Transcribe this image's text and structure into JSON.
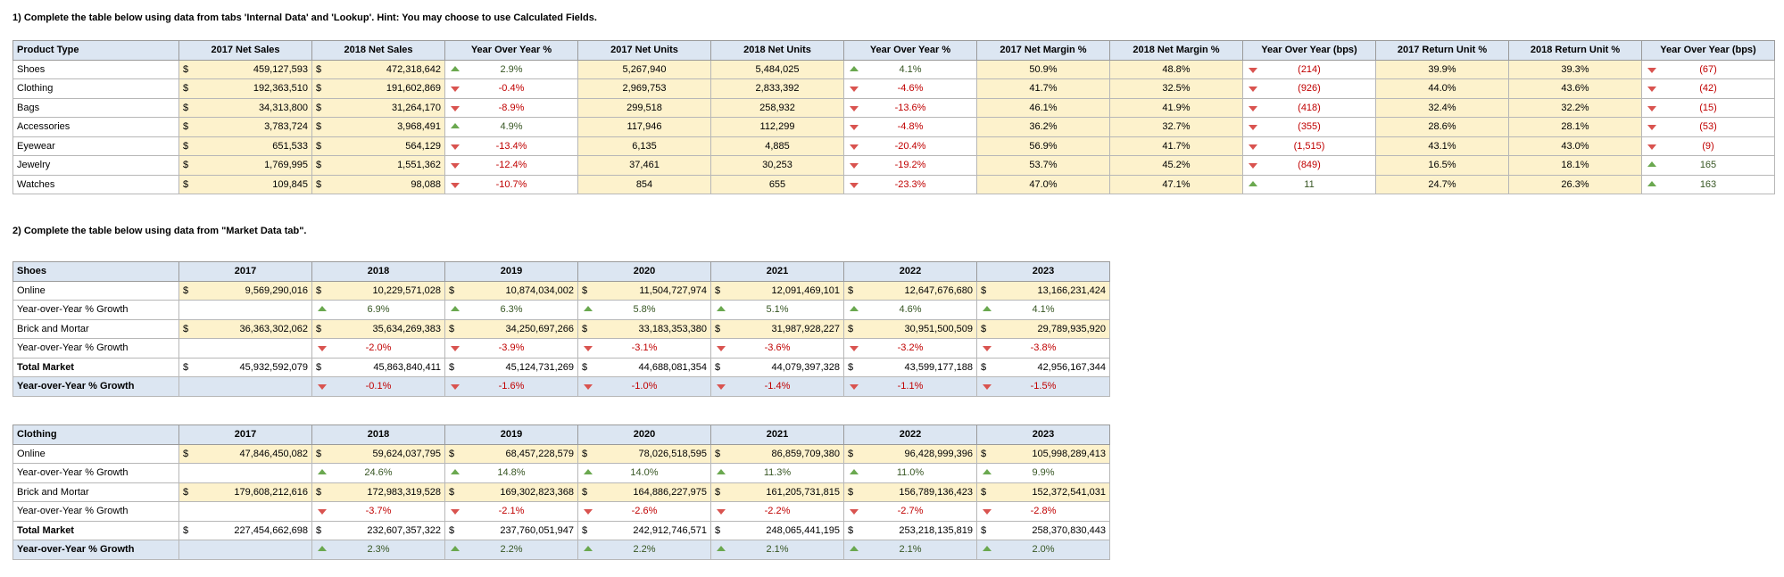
{
  "q1": {
    "heading": "1) Complete the table below using data from tabs 'Internal Data' and 'Lookup'. Hint: You may choose to use Calculated Fields.",
    "headers": [
      "Product Type",
      "2017 Net Sales",
      "2018 Net Sales",
      "Year Over Year %",
      "2017 Net Units",
      "2018 Net Units",
      "Year Over Year %",
      "2017 Net Margin %",
      "2018 Net Margin %",
      "Year Over Year (bps)",
      "2017 Return Unit %",
      "2018 Return Unit %",
      "Year Over Year (bps)"
    ],
    "rows": [
      {
        "type": "Shoes",
        "s17": "459,127,593",
        "s18": "472,318,642",
        "yoy": "2.9%",
        "yoy_dir": "up",
        "u17": "5,267,940",
        "u18": "5,484,025",
        "uyoy": "4.1%",
        "uyoy_dir": "up",
        "m17": "50.9%",
        "m18": "48.8%",
        "mbps": "(214)",
        "mbps_dir": "down",
        "r17": "39.9%",
        "r18": "39.3%",
        "rbps": "(67)",
        "rbps_dir": "down"
      },
      {
        "type": "Clothing",
        "s17": "192,363,510",
        "s18": "191,602,869",
        "yoy": "-0.4%",
        "yoy_dir": "down",
        "u17": "2,969,753",
        "u18": "2,833,392",
        "uyoy": "-4.6%",
        "uyoy_dir": "down",
        "m17": "41.7%",
        "m18": "32.5%",
        "mbps": "(926)",
        "mbps_dir": "down",
        "r17": "44.0%",
        "r18": "43.6%",
        "rbps": "(42)",
        "rbps_dir": "down"
      },
      {
        "type": "Bags",
        "s17": "34,313,800",
        "s18": "31,264,170",
        "yoy": "-8.9%",
        "yoy_dir": "down",
        "u17": "299,518",
        "u18": "258,932",
        "uyoy": "-13.6%",
        "uyoy_dir": "down",
        "m17": "46.1%",
        "m18": "41.9%",
        "mbps": "(418)",
        "mbps_dir": "down",
        "r17": "32.4%",
        "r18": "32.2%",
        "rbps": "(15)",
        "rbps_dir": "down"
      },
      {
        "type": "Accessories",
        "s17": "3,783,724",
        "s18": "3,968,491",
        "yoy": "4.9%",
        "yoy_dir": "up",
        "u17": "117,946",
        "u18": "112,299",
        "uyoy": "-4.8%",
        "uyoy_dir": "down",
        "m17": "36.2%",
        "m18": "32.7%",
        "mbps": "(355)",
        "mbps_dir": "down",
        "r17": "28.6%",
        "r18": "28.1%",
        "rbps": "(53)",
        "rbps_dir": "down"
      },
      {
        "type": "Eyewear",
        "s17": "651,533",
        "s18": "564,129",
        "yoy": "-13.4%",
        "yoy_dir": "down",
        "u17": "6,135",
        "u18": "4,885",
        "uyoy": "-20.4%",
        "uyoy_dir": "down",
        "m17": "56.9%",
        "m18": "41.7%",
        "mbps": "(1,515)",
        "mbps_dir": "down",
        "r17": "43.1%",
        "r18": "43.0%",
        "rbps": "(9)",
        "rbps_dir": "down"
      },
      {
        "type": "Jewelry",
        "s17": "1,769,995",
        "s18": "1,551,362",
        "yoy": "-12.4%",
        "yoy_dir": "down",
        "u17": "37,461",
        "u18": "30,253",
        "uyoy": "-19.2%",
        "uyoy_dir": "down",
        "m17": "53.7%",
        "m18": "45.2%",
        "mbps": "(849)",
        "mbps_dir": "down",
        "r17": "16.5%",
        "r18": "18.1%",
        "rbps": "165",
        "rbps_dir": "up"
      },
      {
        "type": "Watches",
        "s17": "109,845",
        "s18": "98,088",
        "yoy": "-10.7%",
        "yoy_dir": "down",
        "u17": "854",
        "u18": "655",
        "uyoy": "-23.3%",
        "uyoy_dir": "down",
        "m17": "47.0%",
        "m18": "47.1%",
        "mbps": "11",
        "mbps_dir": "up",
        "r17": "24.7%",
        "r18": "26.3%",
        "rbps": "163",
        "rbps_dir": "up"
      }
    ]
  },
  "q2": {
    "heading": "2) Complete the table below using data from \"Market Data tab\".",
    "years": [
      "2017",
      "2018",
      "2019",
      "2020",
      "2021",
      "2022",
      "2023"
    ],
    "tables": [
      {
        "category": "Shoes",
        "rows": [
          {
            "label": "Online",
            "kind": "money",
            "values": [
              "9,569,290,016",
              "10,229,571,028",
              "10,874,034,002",
              "11,504,727,974",
              "12,091,469,101",
              "12,647,676,680",
              "13,166,231,424"
            ]
          },
          {
            "label": "Year-over-Year % Growth",
            "kind": "growth",
            "values": [
              "",
              "6.9%",
              "6.3%",
              "5.8%",
              "5.1%",
              "4.6%",
              "4.1%"
            ],
            "dirs": [
              "",
              "up",
              "up",
              "up",
              "up",
              "up",
              "up"
            ]
          },
          {
            "label": "Brick and Mortar",
            "kind": "money",
            "values": [
              "36,363,302,062",
              "35,634,269,383",
              "34,250,697,266",
              "33,183,353,380",
              "31,987,928,227",
              "30,951,500,509",
              "29,789,935,920"
            ]
          },
          {
            "label": "Year-over-Year % Growth",
            "kind": "growth",
            "values": [
              "",
              "-2.0%",
              "-3.9%",
              "-3.1%",
              "-3.6%",
              "-3.2%",
              "-3.8%"
            ],
            "dirs": [
              "",
              "down",
              "down",
              "down",
              "down",
              "down",
              "down"
            ]
          },
          {
            "label": "Total Market",
            "kind": "total",
            "values": [
              "45,932,592,079",
              "45,863,840,411",
              "45,124,731,269",
              "44,688,081,354",
              "44,079,397,328",
              "43,599,177,188",
              "42,956,167,344"
            ]
          },
          {
            "label": "Year-over-Year % Growth",
            "kind": "totalgrowth",
            "values": [
              "",
              "-0.1%",
              "-1.6%",
              "-1.0%",
              "-1.4%",
              "-1.1%",
              "-1.5%"
            ],
            "dirs": [
              "",
              "down",
              "down",
              "down",
              "down",
              "down",
              "down"
            ]
          }
        ]
      },
      {
        "category": "Clothing",
        "rows": [
          {
            "label": "Online",
            "kind": "money",
            "values": [
              "47,846,450,082",
              "59,624,037,795",
              "68,457,228,579",
              "78,026,518,595",
              "86,859,709,380",
              "96,428,999,396",
              "105,998,289,413"
            ]
          },
          {
            "label": "Year-over-Year % Growth",
            "kind": "growth",
            "values": [
              "",
              "24.6%",
              "14.8%",
              "14.0%",
              "11.3%",
              "11.0%",
              "9.9%"
            ],
            "dirs": [
              "",
              "up",
              "up",
              "up",
              "up",
              "up",
              "up"
            ]
          },
          {
            "label": "Brick and Mortar",
            "kind": "money",
            "values": [
              "179,608,212,616",
              "172,983,319,528",
              "169,302,823,368",
              "164,886,227,975",
              "161,205,731,815",
              "156,789,136,423",
              "152,372,541,031"
            ]
          },
          {
            "label": "Year-over-Year % Growth",
            "kind": "growth",
            "values": [
              "",
              "-3.7%",
              "-2.1%",
              "-2.6%",
              "-2.2%",
              "-2.7%",
              "-2.8%"
            ],
            "dirs": [
              "",
              "down",
              "down",
              "down",
              "down",
              "down",
              "down"
            ]
          },
          {
            "label": "Total Market",
            "kind": "total",
            "values": [
              "227,454,662,698",
              "232,607,357,322",
              "237,760,051,947",
              "242,912,746,571",
              "248,065,441,195",
              "253,218,135,819",
              "258,370,830,443"
            ]
          },
          {
            "label": "Year-over-Year % Growth",
            "kind": "totalgrowth",
            "values": [
              "",
              "2.3%",
              "2.2%",
              "2.2%",
              "2.1%",
              "2.1%",
              "2.0%"
            ],
            "dirs": [
              "",
              "up",
              "up",
              "up",
              "up",
              "up",
              "up"
            ]
          }
        ]
      }
    ]
  },
  "currency_symbol": "$",
  "colors": {
    "header_bg": "#dce6f2",
    "input_bg": "#fdf2cc",
    "up": "#6aa84f",
    "down": "#d9534f",
    "pos_text": "#375623",
    "neg_text": "#c00000"
  }
}
